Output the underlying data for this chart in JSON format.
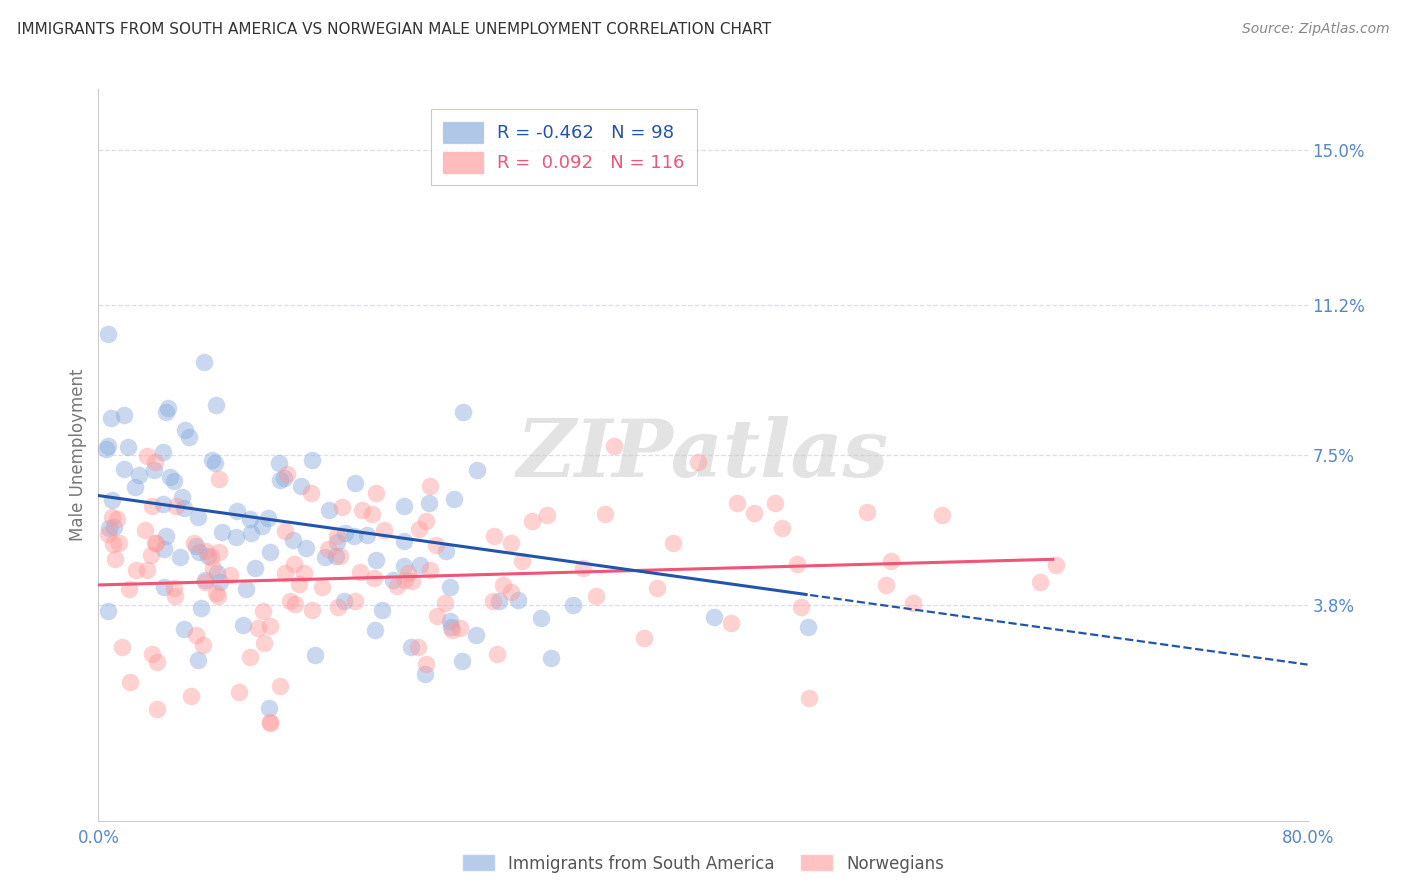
{
  "title": "IMMIGRANTS FROM SOUTH AMERICA VS NORWEGIAN MALE UNEMPLOYMENT CORRELATION CHART",
  "source": "Source: ZipAtlas.com",
  "ylabel": "Male Unemployment",
  "xlim": [
    0.0,
    0.8
  ],
  "ylim": [
    -0.015,
    0.165
  ],
  "yticks": [
    0.038,
    0.075,
    0.112,
    0.15
  ],
  "ytick_labels": [
    "3.8%",
    "7.5%",
    "11.2%",
    "15.0%"
  ],
  "xticks": [
    0.0,
    0.2,
    0.4,
    0.6,
    0.8
  ],
  "xtick_labels": [
    "0.0%",
    "",
    "",
    "",
    "80.0%"
  ],
  "blue_color": "#88AADD",
  "pink_color": "#FF9999",
  "blue_line_color": "#2255AA",
  "pink_line_color": "#EE5577",
  "watermark": "ZIPatlas",
  "blue_R": -0.462,
  "blue_N": 98,
  "pink_R": 0.092,
  "pink_N": 116,
  "blue_intercept": 0.065,
  "blue_slope": -0.052,
  "pink_intercept": 0.043,
  "pink_slope": 0.01,
  "axis_label_color": "#5588CC",
  "grid_color": "#DDDDEE",
  "background_color": "#FFFFFF",
  "title_color": "#333333",
  "source_color": "#888888",
  "ylabel_color": "#777777"
}
